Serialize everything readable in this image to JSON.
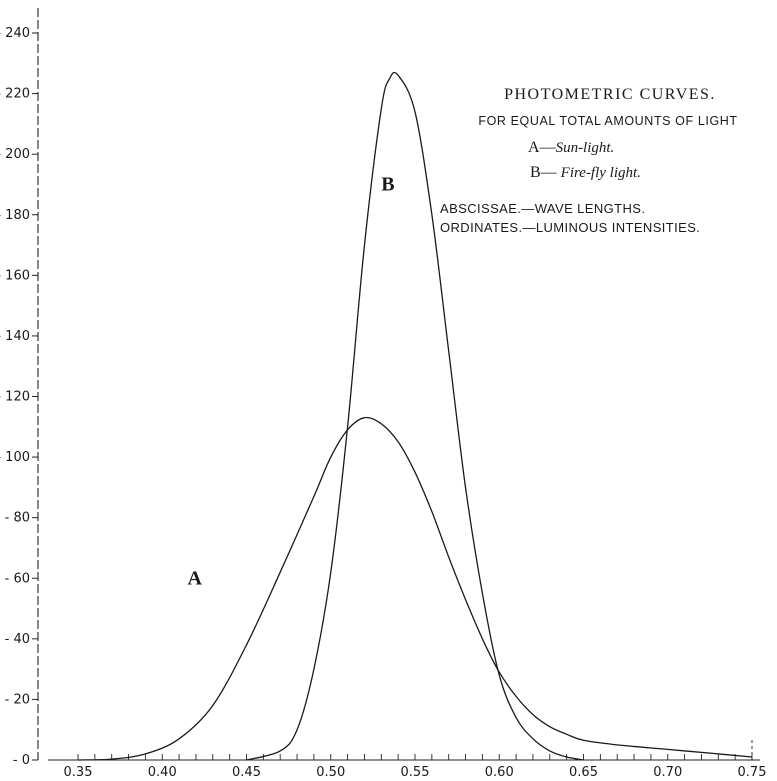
{
  "chart_data": {
    "type": "line",
    "title": "PHOTOMETRIC CURVES.",
    "subtitle": "FOR EQUAL TOTAL AMOUNTS OF LIGHT",
    "legend": [
      {
        "key": "A",
        "sep": "—",
        "desc": "Sun-light."
      },
      {
        "key": "B",
        "sep": "— ",
        "desc": "Fire-fly light."
      }
    ],
    "axis_notes": [
      "ABSCISSAE.—WAVE LENGTHS.",
      "ORDINATES.—LUMINOUS INTENSITIES."
    ],
    "xlim": [
      0.35,
      0.75
    ],
    "ylim": [
      0,
      240
    ],
    "x_tick_labels": [
      "0.35",
      "0.40",
      "0.45",
      "0.50",
      "0.55",
      "0.60",
      "0.65",
      "0.70",
      "0.75"
    ],
    "x_ticks": [
      0.35,
      0.4,
      0.45,
      0.5,
      0.55,
      0.6,
      0.65,
      0.7,
      0.75
    ],
    "y_tick_labels": [
      "0",
      "20",
      "40",
      "60",
      "80",
      "100",
      "120",
      "140",
      "160",
      "180",
      "200",
      "220",
      "240"
    ],
    "y_ticks": [
      0,
      20,
      40,
      60,
      80,
      100,
      120,
      140,
      160,
      180,
      200,
      220,
      240
    ],
    "series": [
      {
        "name": "A",
        "x": [
          0.35,
          0.37,
          0.39,
          0.41,
          0.43,
          0.45,
          0.47,
          0.49,
          0.5,
          0.51,
          0.52,
          0.53,
          0.54,
          0.55,
          0.56,
          0.57,
          0.58,
          0.59,
          0.6,
          0.61,
          0.62,
          0.63,
          0.64,
          0.65,
          0.67,
          0.7,
          0.73,
          0.75
        ],
        "y": [
          0,
          0.3,
          2,
          7,
          18,
          38,
          62,
          87,
          100,
          109,
          113,
          111,
          105,
          95,
          82,
          67,
          53,
          40,
          29,
          21,
          15,
          11,
          8.5,
          6.5,
          5,
          3.5,
          2,
          1
        ]
      },
      {
        "name": "B",
        "x": [
          0.45,
          0.47,
          0.48,
          0.49,
          0.5,
          0.51,
          0.52,
          0.53,
          0.535,
          0.54,
          0.55,
          0.56,
          0.57,
          0.58,
          0.59,
          0.6,
          0.61,
          0.62,
          0.63,
          0.64,
          0.65
        ],
        "y": [
          0,
          3,
          10,
          30,
          62,
          110,
          170,
          215,
          225,
          226,
          214,
          180,
          135,
          90,
          55,
          28,
          14,
          7,
          3,
          1,
          0
        ]
      }
    ],
    "curve_labels": [
      {
        "text": "A",
        "x": 0.415,
        "y": 58
      },
      {
        "text": "B",
        "x": 0.53,
        "y": 188
      }
    ],
    "grid": false,
    "legend_position": "top-right"
  }
}
